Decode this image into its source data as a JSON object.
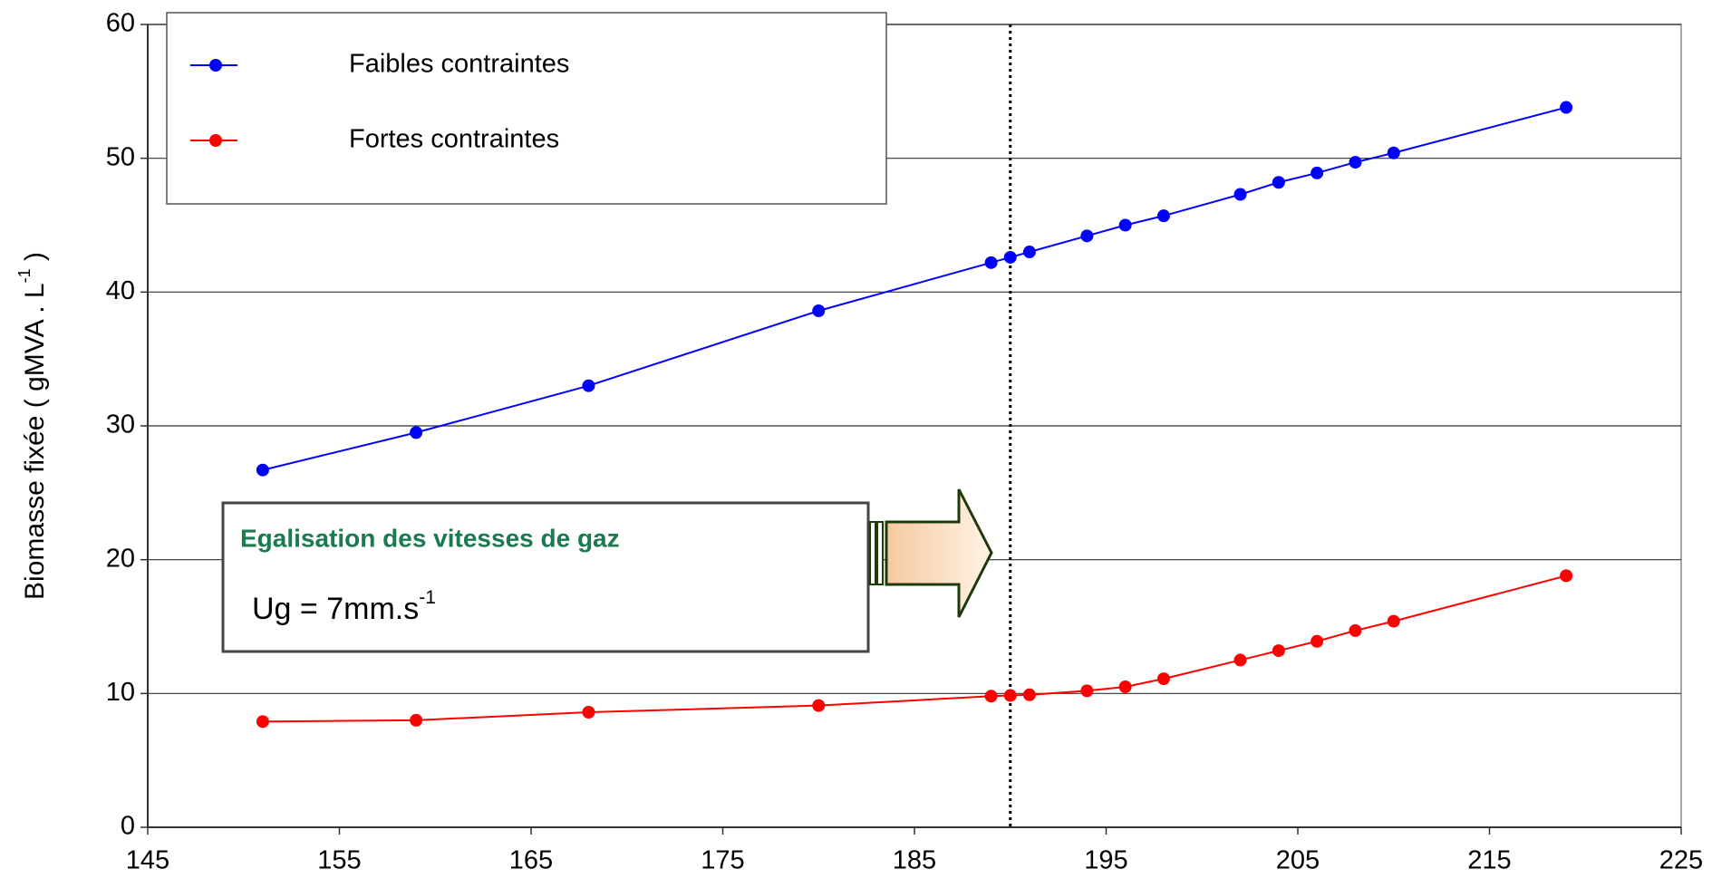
{
  "chart_data": {
    "type": "line",
    "ylabel": "Biomasse fixée ( gMVA . L",
    "ylabel_sup": "-1",
    "ylabel_end": " )",
    "x": [
      151,
      159,
      168,
      180,
      189,
      190,
      191,
      194,
      196,
      198,
      202,
      204,
      206,
      208,
      210,
      219
    ],
    "series": [
      {
        "name": "Faibles contraintes",
        "color": "#0000ff",
        "values": [
          26.7,
          29.5,
          33.0,
          38.6,
          42.2,
          42.6,
          43.0,
          44.2,
          45.0,
          45.7,
          47.3,
          48.2,
          48.9,
          49.7,
          50.4,
          53.8
        ]
      },
      {
        "name": "Fortes contraintes",
        "color": "#ff0000",
        "values": [
          7.9,
          8.0,
          8.6,
          9.1,
          9.8,
          9.85,
          9.9,
          10.2,
          10.5,
          11.1,
          12.5,
          13.2,
          13.9,
          14.7,
          15.4,
          18.8
        ]
      }
    ],
    "xlim": [
      145,
      225
    ],
    "xticks": [
      145,
      155,
      165,
      175,
      185,
      195,
      205,
      215,
      225
    ],
    "ylim": [
      0,
      60
    ],
    "yticks": [
      0,
      10,
      20,
      30,
      40,
      50,
      60
    ],
    "grid": true,
    "vline": 190,
    "annotation": {
      "title": "Egalisation des vitesses de gaz",
      "text": "Ug = 7mm.s",
      "superscript": "-1"
    }
  }
}
